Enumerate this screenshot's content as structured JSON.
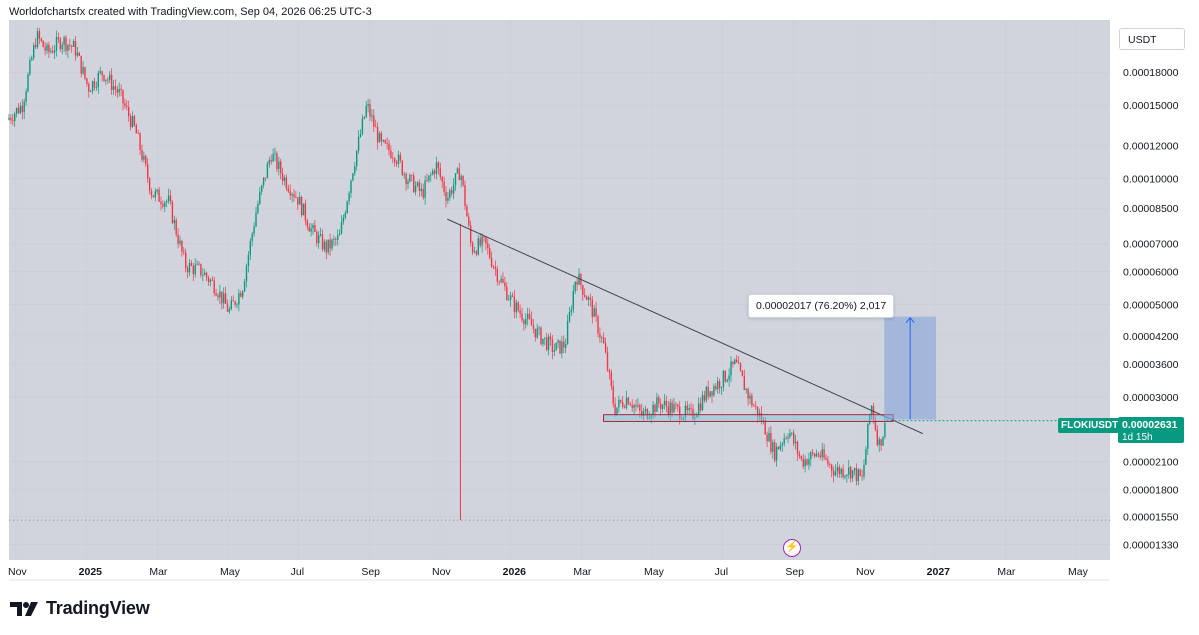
{
  "header": {
    "attribution": "Worldofchartsfx created with TradingView.com, Sep 04, 2026 06:25 UTC-3"
  },
  "symbol": "FLOKIUSDT",
  "currency": "USDT",
  "last_price": "0.00002631",
  "countdown": "1d 15h",
  "measure": {
    "label": "0.00002017 (76.20%) 2,017"
  },
  "brand": {
    "name": "TradingView"
  },
  "colors": {
    "up": "#089981",
    "down": "#f23645",
    "background": "#d1d4dc",
    "trendline": "#434651",
    "range_fill": "#7e9fd9",
    "arrow": "#2962ff",
    "zone_border": "#b2243d"
  },
  "icons": {
    "flash": "lightning-icon",
    "logo": "tradingview-logo-icon"
  },
  "chart_data": {
    "type": "candlestick",
    "scale": "log",
    "price_axis": [
      "0.00018000",
      "0.00015000",
      "0.00012000",
      "0.00010000",
      "0.00008500",
      "0.00007000",
      "0.00006000",
      "0.00005000",
      "0.00004200",
      "0.00003600",
      "0.00003000",
      "0.00002100",
      "0.00001800",
      "0.00001550",
      "0.00001330"
    ],
    "time_axis": [
      {
        "label": "Nov",
        "major": false
      },
      {
        "label": "2025",
        "major": true
      },
      {
        "label": "Mar",
        "major": false
      },
      {
        "label": "May",
        "major": false
      },
      {
        "label": "Jul",
        "major": false
      },
      {
        "label": "Sep",
        "major": false
      },
      {
        "label": "Nov",
        "major": false
      },
      {
        "label": "2026",
        "major": true
      },
      {
        "label": "Mar",
        "major": false
      },
      {
        "label": "May",
        "major": false
      },
      {
        "label": "Jul",
        "major": false
      },
      {
        "label": "Sep",
        "major": false
      },
      {
        "label": "Nov",
        "major": false
      },
      {
        "label": "2027",
        "major": true
      },
      {
        "label": "Mar",
        "major": false
      },
      {
        "label": "May",
        "major": false
      }
    ],
    "price_path": [
      {
        "t": 0,
        "p": 0.00014
      },
      {
        "t": 0.012,
        "p": 0.00015
      },
      {
        "t": 0.025,
        "p": 0.00022
      },
      {
        "t": 0.035,
        "p": 0.0002
      },
      {
        "t": 0.048,
        "p": 0.000215
      },
      {
        "t": 0.06,
        "p": 0.000205
      },
      {
        "t": 0.072,
        "p": 0.000165
      },
      {
        "t": 0.085,
        "p": 0.00018
      },
      {
        "t": 0.1,
        "p": 0.00016
      },
      {
        "t": 0.115,
        "p": 0.00013
      },
      {
        "t": 0.13,
        "p": 9.2e-05
      },
      {
        "t": 0.145,
        "p": 8.8e-05
      },
      {
        "t": 0.16,
        "p": 6.2e-05
      },
      {
        "t": 0.175,
        "p": 6e-05
      },
      {
        "t": 0.188,
        "p": 5.5e-05
      },
      {
        "t": 0.2,
        "p": 4.8e-05
      },
      {
        "t": 0.212,
        "p": 5.5e-05
      },
      {
        "t": 0.225,
        "p": 8.5e-05
      },
      {
        "t": 0.238,
        "p": 0.000115
      },
      {
        "t": 0.25,
        "p": 0.0001
      },
      {
        "t": 0.262,
        "p": 9e-05
      },
      {
        "t": 0.275,
        "p": 7.5e-05
      },
      {
        "t": 0.288,
        "p": 6.8e-05
      },
      {
        "t": 0.3,
        "p": 7.2e-05
      },
      {
        "t": 0.312,
        "p": 0.000105
      },
      {
        "t": 0.325,
        "p": 0.00015
      },
      {
        "t": 0.338,
        "p": 0.00012
      },
      {
        "t": 0.35,
        "p": 0.000115
      },
      {
        "t": 0.362,
        "p": 0.0001
      },
      {
        "t": 0.375,
        "p": 9.2e-05
      },
      {
        "t": 0.388,
        "p": 0.000108
      },
      {
        "t": 0.398,
        "p": 9e-05
      },
      {
        "t": 0.41,
        "p": 0.000105
      },
      {
        "t": 0.42,
        "p": 6.8e-05
      },
      {
        "t": 0.432,
        "p": 7e-05
      },
      {
        "t": 0.445,
        "p": 5.8e-05
      },
      {
        "t": 0.458,
        "p": 5e-05
      },
      {
        "t": 0.47,
        "p": 4.6e-05
      },
      {
        "t": 0.482,
        "p": 4.2e-05
      },
      {
        "t": 0.495,
        "p": 3.9e-05
      },
      {
        "t": 0.505,
        "p": 4e-05
      },
      {
        "t": 0.515,
        "p": 5.9e-05
      },
      {
        "t": 0.528,
        "p": 5e-05
      },
      {
        "t": 0.54,
        "p": 4e-05
      },
      {
        "t": 0.55,
        "p": 2.8e-05
      },
      {
        "t": 0.562,
        "p": 3e-05
      },
      {
        "t": 0.575,
        "p": 2.7e-05
      },
      {
        "t": 0.59,
        "p": 2.9e-05
      },
      {
        "t": 0.605,
        "p": 2.8e-05
      },
      {
        "t": 0.62,
        "p": 2.7e-05
      },
      {
        "t": 0.635,
        "p": 3.1e-05
      },
      {
        "t": 0.648,
        "p": 3.3e-05
      },
      {
        "t": 0.66,
        "p": 3.6e-05
      },
      {
        "t": 0.672,
        "p": 3e-05
      },
      {
        "t": 0.685,
        "p": 2.6e-05
      },
      {
        "t": 0.695,
        "p": 2.2e-05
      },
      {
        "t": 0.708,
        "p": 2.5e-05
      },
      {
        "t": 0.72,
        "p": 2.1e-05
      },
      {
        "t": 0.735,
        "p": 2.2e-05
      },
      {
        "t": 0.75,
        "p": 2e-05
      },
      {
        "t": 0.765,
        "p": 2e-05
      },
      {
        "t": 0.775,
        "p": 1.9e-05
      },
      {
        "t": 0.783,
        "p": 2.9e-05
      },
      {
        "t": 0.79,
        "p": 2.3e-05
      },
      {
        "t": 0.797,
        "p": 2.6e-05
      }
    ],
    "trendline": {
      "from": {
        "t": 0.398,
        "p": 8e-05
      },
      "to": {
        "t": 0.83,
        "p": 2.45e-05
      }
    },
    "spike_low": {
      "t": 0.41,
      "p": 1.52e-05
    },
    "support_zone": {
      "t_start": 0.54,
      "t_end": 0.803,
      "p_low": 2.62e-05,
      "p_high": 2.72e-05
    },
    "range_target": {
      "t_start": 0.795,
      "t_end": 0.842,
      "p_low": 2.65e-05,
      "p_high": 4.67e-05
    },
    "dotted_line_price": 1.52e-05
  }
}
